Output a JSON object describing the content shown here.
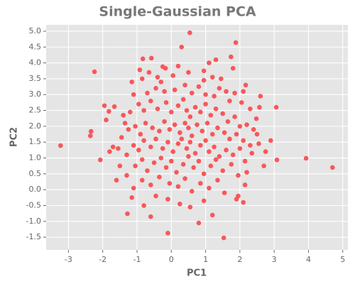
{
  "chart_data": {
    "type": "scatter",
    "title": "Single-Gaussian PCA",
    "x_label": "PC1",
    "y_label": "PC2",
    "color": "#f8575a",
    "grid": true,
    "xlim": [
      -3.65,
      5.15
    ],
    "xticks": [
      -3,
      -2,
      -1,
      0,
      1,
      2,
      3,
      4,
      5
    ],
    "ylim": [
      -1.9,
      5.2
    ],
    "yticks": [
      -1.5,
      {
        "value": -1,
        "label": "-1.0"
      },
      -0.5,
      {
        "value": 0,
        "label": "0.0"
      },
      0.5,
      {
        "value": 1,
        "label": "1.0"
      },
      1.5,
      {
        "value": 2,
        "label": "2.0"
      },
      2.5,
      {
        "value": 3,
        "label": "3.0"
      },
      3.5,
      {
        "value": 4,
        "label": "4.0"
      },
      4.5,
      {
        "value": 5,
        "label": "5.0"
      }
    ],
    "x": [
      0.54,
      1.88,
      -3.23,
      4.7,
      3.93,
      3.08,
      3.06,
      -2.24,
      -2.34,
      -2.36,
      -2.07,
      -1.95,
      -1.82,
      -1.66,
      -1.28,
      -0.1,
      1.53,
      1.3,
      -0.83,
      -0.58,
      -0.25,
      -0.17,
      1.74,
      1.8,
      2.17,
      2.57,
      2.48,
      -0.92,
      -0.65,
      -0.4,
      0.05,
      0.5,
      0.95,
      1.2,
      1.45,
      1.6,
      1.85,
      2.1,
      2.6,
      2.05,
      2.3,
      -1.15,
      -0.85,
      -1.1,
      -0.7,
      -0.45,
      -0.2,
      0.1,
      0.4,
      0.6,
      0.8,
      1.0,
      1.25,
      1.4,
      1.7,
      -1.4,
      -1.35,
      -1.2,
      -0.95,
      -0.8,
      -0.6,
      -0.4,
      -0.15,
      0.0,
      0.2,
      0.35,
      0.45,
      0.55,
      0.7,
      0.85,
      1.0,
      1.15,
      1.3,
      1.5,
      1.65,
      1.85,
      2.0,
      2.2,
      2.4,
      -1.7,
      -1.55,
      -1.45,
      -1.25,
      -1.05,
      -0.9,
      -0.75,
      -0.55,
      -0.35,
      -0.2,
      -0.05,
      0.1,
      0.25,
      0.4,
      0.5,
      0.6,
      0.75,
      0.9,
      1.05,
      1.2,
      1.35,
      1.55,
      1.7,
      1.9,
      2.1,
      2.3,
      2.5,
      -1.5,
      -1.3,
      -1.1,
      -0.95,
      -0.8,
      -0.6,
      -0.45,
      -0.25,
      -0.1,
      0.05,
      0.2,
      0.3,
      0.45,
      0.55,
      0.7,
      0.85,
      1.0,
      1.1,
      1.25,
      1.4,
      1.6,
      1.8,
      2.0,
      2.15,
      2.35,
      -1.3,
      -1.05,
      -0.85,
      -0.7,
      -0.5,
      -0.3,
      -0.15,
      0.0,
      0.15,
      0.35,
      0.5,
      0.65,
      0.8,
      0.95,
      1.15,
      1.3,
      1.5,
      1.75,
      1.95,
      2.2,
      -1.1,
      -0.85,
      -0.6,
      -0.35,
      -0.05,
      0.2,
      0.4,
      0.6,
      0.85,
      1.1,
      1.35,
      1.55,
      1.9,
      2.15,
      -1.15,
      -0.8,
      -0.45,
      -0.1,
      0.25,
      0.55,
      0.95,
      1.2,
      2.1,
      -0.6,
      0.8,
      1.95,
      -1.6,
      -1.8,
      2.75,
      2.9,
      2.7,
      -1.9,
      2.55,
      1.1,
      0.3,
      0.95,
      -0.3,
      0.2
    ],
    "values": [
      4.95,
      4.64,
      1.39,
      0.7,
      0.99,
      0.94,
      2.6,
      3.72,
      1.84,
      1.7,
      0.94,
      2.65,
      2.47,
      2.62,
      -0.76,
      -1.37,
      -1.52,
      4.1,
      4.13,
      4.15,
      3.88,
      3.83,
      4.19,
      3.83,
      3.3,
      2.6,
      2.24,
      3.78,
      3.7,
      3.55,
      3.6,
      3.7,
      3.45,
      3.55,
      3.5,
      3.1,
      3.05,
      3.1,
      2.95,
      2.75,
      2.55,
      3.4,
      3.5,
      3.0,
      3.05,
      3.2,
      3.1,
      3.15,
      3.3,
      3.05,
      3.25,
      3.0,
      2.95,
      3.2,
      2.8,
      2.35,
      2.1,
      2.45,
      2.7,
      2.5,
      2.8,
      2.55,
      2.75,
      2.45,
      2.65,
      2.85,
      2.5,
      2.3,
      2.6,
      2.45,
      2.7,
      2.35,
      2.55,
      2.4,
      2.15,
      2.3,
      2.0,
      2.05,
      1.9,
      1.35,
      1.3,
      1.65,
      1.9,
      2.0,
      1.75,
      2.1,
      1.95,
      1.85,
      2.15,
      1.9,
      2.05,
      1.8,
      2.1,
      1.95,
      1.7,
      2.05,
      1.85,
      2.1,
      1.75,
      1.95,
      1.8,
      1.6,
      1.75,
      1.55,
      1.4,
      1.75,
      0.75,
      1.1,
      1.4,
      1.25,
      1.55,
      1.35,
      1.6,
      1.3,
      1.5,
      1.2,
      1.45,
      1.6,
      1.3,
      1.5,
      1.15,
      1.4,
      1.55,
      1.2,
      1.35,
      1.05,
      1.25,
      1.1,
      1.3,
      0.9,
      1.15,
      0.45,
      0.75,
      0.95,
      0.6,
      0.85,
      1.0,
      0.7,
      0.9,
      0.55,
      0.8,
      1.05,
      0.7,
      0.9,
      0.5,
      0.75,
      0.95,
      0.6,
      0.8,
      0.45,
      0.55,
      0.05,
      0.3,
      0.15,
      0.4,
      0.2,
      0.1,
      0.35,
      -0.05,
      0.2,
      0.05,
      0.3,
      -0.1,
      -0.3,
      0.15,
      -0.25,
      -0.5,
      -0.2,
      -0.3,
      -0.45,
      -0.55,
      -0.35,
      -0.8,
      -0.4,
      -0.85,
      -1.05,
      -0.2,
      0.3,
      1.2,
      1.2,
      1.55,
      0.75,
      2.2,
      1.45,
      4.0,
      4.5,
      3.75,
      3.4,
      3.9
    ]
  }
}
